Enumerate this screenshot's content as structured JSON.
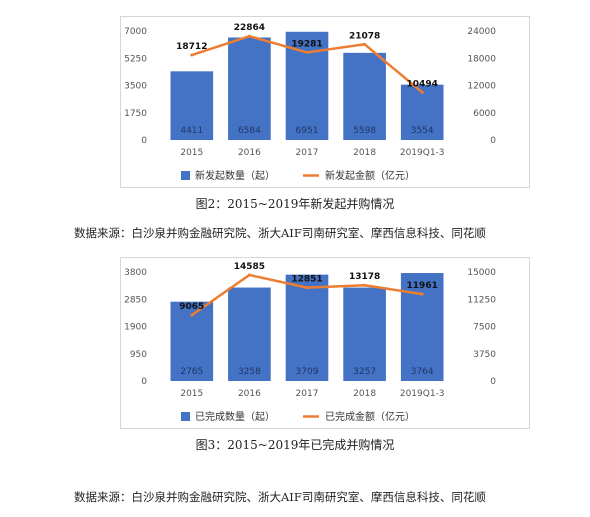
{
  "chart_data": [
    {
      "type": "bar",
      "categories": [
        "2015",
        "2016",
        "2017",
        "2018",
        "2019Q1-3"
      ],
      "series": [
        {
          "name": "新发起数量（起）",
          "type": "bar",
          "axis": "left",
          "color": "#4472c4",
          "values": [
            4411,
            6584,
            6951,
            5598,
            3554
          ]
        },
        {
          "name": "新发起金额（亿元）",
          "type": "line",
          "axis": "right",
          "color": "#ed7d31",
          "values": [
            18712,
            22864,
            19281,
            21078,
            10494
          ]
        }
      ],
      "left_axis": {
        "min": 0,
        "max": 7000,
        "ticks": [
          "0",
          "1750",
          "3500",
          "5250",
          "7000"
        ]
      },
      "right_axis": {
        "min": 0,
        "max": 24000,
        "ticks": [
          "0",
          "6000",
          "12000",
          "18000",
          "24000"
        ]
      },
      "grid": false,
      "legend": "bottom"
    },
    {
      "type": "bar",
      "categories": [
        "2015",
        "2016",
        "2017",
        "2018",
        "2019Q1-3"
      ],
      "series": [
        {
          "name": "已完成数量（起）",
          "type": "bar",
          "axis": "left",
          "color": "#4472c4",
          "values": [
            2765,
            3258,
            3709,
            3257,
            3764
          ]
        },
        {
          "name": "已完成金额（亿元）",
          "type": "line",
          "axis": "right",
          "color": "#ed7d31",
          "values": [
            9065,
            14585,
            12851,
            13178,
            11961
          ]
        }
      ],
      "left_axis": {
        "min": 0,
        "max": 3800,
        "ticks": [
          "0",
          "950",
          "1900",
          "2850",
          "3800"
        ]
      },
      "right_axis": {
        "min": 0,
        "max": 15000,
        "ticks": [
          "0",
          "3750",
          "7500",
          "11250",
          "15000"
        ]
      },
      "grid": false,
      "legend": "bottom"
    }
  ],
  "captions": {
    "fig2": "图2：2015~2019年新发起并购情况",
    "source1": "数据来源：白沙泉并购金融研究院、浙大AIF司南研究室、摩西信息科技、同花顺",
    "fig3": "图3：2015~2019年已完成并购情况",
    "source2": "数据来源：白沙泉并购金融研究院、浙大AIF司南研究室、摩西信息科技、同花顺"
  }
}
